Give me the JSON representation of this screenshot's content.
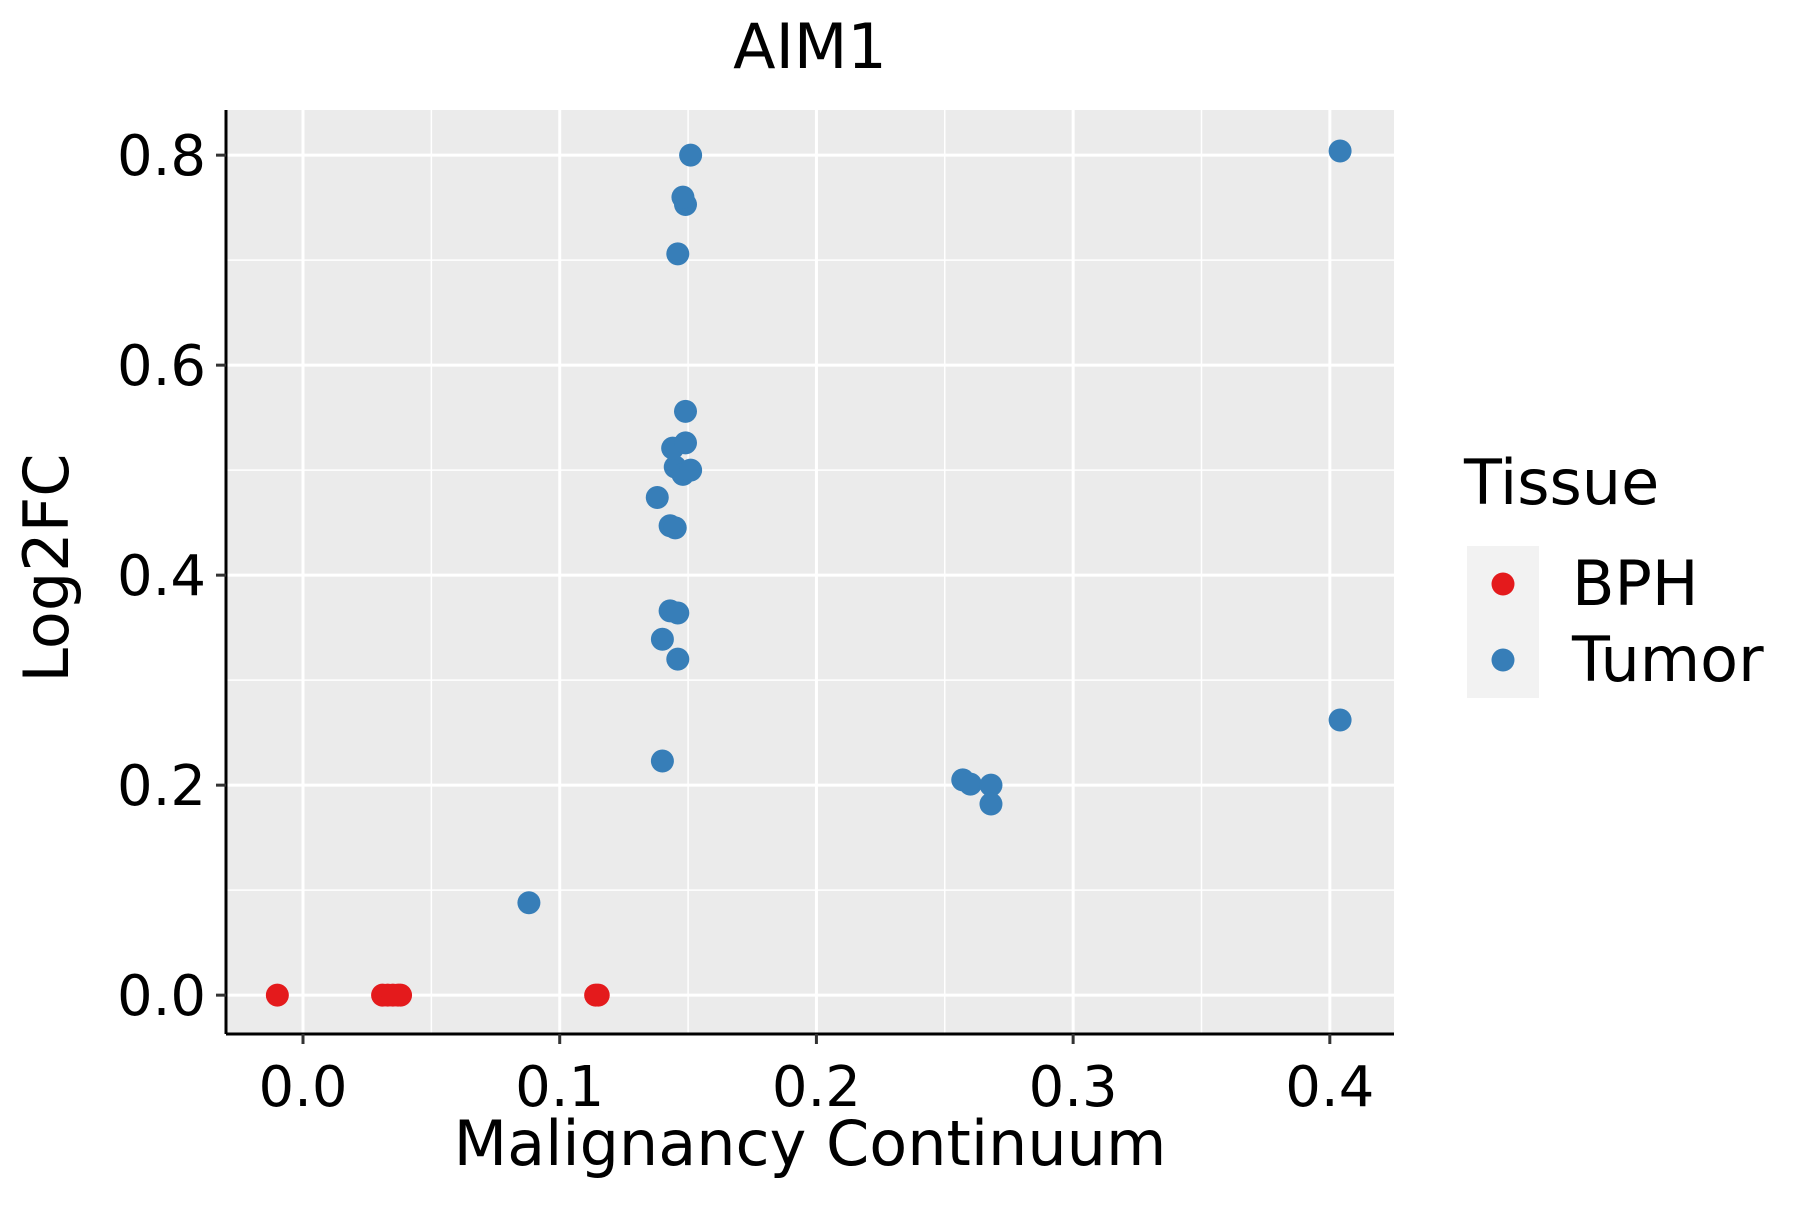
{
  "chart_data": {
    "type": "scatter",
    "title": "AIM1",
    "xlabel": "Malignancy Continuum",
    "ylabel": "Log2FC",
    "xlim": [
      -0.03,
      0.425
    ],
    "ylim": [
      -0.037,
      0.843
    ],
    "x_ticks": [
      0.0,
      0.1,
      0.2,
      0.3,
      0.4
    ],
    "x_tick_labels": [
      "0.0",
      "0.1",
      "0.2",
      "0.3",
      "0.4"
    ],
    "y_ticks": [
      0.0,
      0.2,
      0.4,
      0.6,
      0.8
    ],
    "y_tick_labels": [
      "0.0",
      "0.2",
      "0.4",
      "0.6",
      "0.8"
    ],
    "grid": true,
    "legend": {
      "title": "Tissue",
      "position": "right",
      "entries": [
        {
          "name": "BPH",
          "color": "#e41a1c"
        },
        {
          "name": "Tumor",
          "color": "#377eb8"
        }
      ]
    },
    "series": [
      {
        "name": "BPH",
        "color": "#e41a1c",
        "points": [
          {
            "x": -0.01,
            "y": 0.0
          },
          {
            "x": 0.031,
            "y": 0.0
          },
          {
            "x": 0.033,
            "y": 0.0
          },
          {
            "x": 0.035,
            "y": 0.0
          },
          {
            "x": 0.037,
            "y": 0.0
          },
          {
            "x": 0.038,
            "y": 0.0
          },
          {
            "x": 0.114,
            "y": 0.0
          },
          {
            "x": 0.115,
            "y": 0.0
          }
        ]
      },
      {
        "name": "Tumor",
        "color": "#377eb8",
        "points": [
          {
            "x": 0.088,
            "y": 0.088
          },
          {
            "x": 0.14,
            "y": 0.223
          },
          {
            "x": 0.14,
            "y": 0.339
          },
          {
            "x": 0.146,
            "y": 0.32
          },
          {
            "x": 0.143,
            "y": 0.366
          },
          {
            "x": 0.146,
            "y": 0.364
          },
          {
            "x": 0.138,
            "y": 0.474
          },
          {
            "x": 0.143,
            "y": 0.447
          },
          {
            "x": 0.145,
            "y": 0.445
          },
          {
            "x": 0.145,
            "y": 0.503
          },
          {
            "x": 0.148,
            "y": 0.496
          },
          {
            "x": 0.151,
            "y": 0.5
          },
          {
            "x": 0.144,
            "y": 0.521
          },
          {
            "x": 0.149,
            "y": 0.526
          },
          {
            "x": 0.149,
            "y": 0.556
          },
          {
            "x": 0.146,
            "y": 0.706
          },
          {
            "x": 0.149,
            "y": 0.753
          },
          {
            "x": 0.148,
            "y": 0.76
          },
          {
            "x": 0.151,
            "y": 0.8
          },
          {
            "x": 0.257,
            "y": 0.205
          },
          {
            "x": 0.26,
            "y": 0.201
          },
          {
            "x": 0.268,
            "y": 0.2
          },
          {
            "x": 0.268,
            "y": 0.182
          },
          {
            "x": 0.404,
            "y": 0.804
          },
          {
            "x": 0.404,
            "y": 0.262
          }
        ]
      }
    ]
  }
}
